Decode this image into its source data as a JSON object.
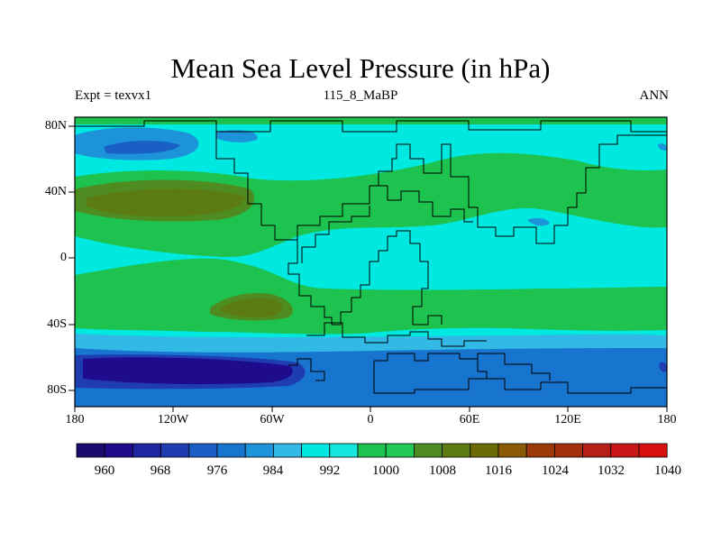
{
  "figure": {
    "title": "Mean Sea Level Pressure (in hPa)",
    "left_subtitle": "Expt = texvx1",
    "center_subtitle": "115_8_MaBP",
    "right_subtitle": "ANN"
  },
  "chart_data": {
    "type": "heatmap",
    "variable": "Mean Sea Level Pressure",
    "units": "hPa",
    "experiment": "texvx1",
    "period": "115_8_MaBP",
    "season": "ANN",
    "x_range": [
      -180,
      180
    ],
    "y_range": [
      -90,
      90
    ],
    "lat_ticks": [
      "80N",
      "40N",
      "0",
      "40S",
      "80S"
    ],
    "lat_tick_values": [
      80,
      40,
      0,
      -40,
      -80
    ],
    "lon_ticks": [
      "180",
      "120W",
      "60W",
      "0",
      "60E",
      "120E",
      "180"
    ],
    "lon_tick_values": [
      -180,
      -120,
      -60,
      0,
      60,
      120,
      180
    ],
    "colorbar_labels": [
      "960",
      "968",
      "976",
      "984",
      "992",
      "1000",
      "1008",
      "1016",
      "1024",
      "1032",
      "1040"
    ],
    "colorbar_colors": [
      "#1c0b6e",
      "#1e0c8c",
      "#1f24a0",
      "#1f3cb3",
      "#1a5fc6",
      "#1775cf",
      "#1d93da",
      "#32b9e6",
      "#00e9e0",
      "#16e6e0",
      "#1ec24e",
      "#22c955",
      "#4e8c21",
      "#5c7b12",
      "#6b6b08",
      "#8a5a06",
      "#9b3a08",
      "#a5300c",
      "#b51f18",
      "#c81818",
      "#d80f0f"
    ]
  }
}
